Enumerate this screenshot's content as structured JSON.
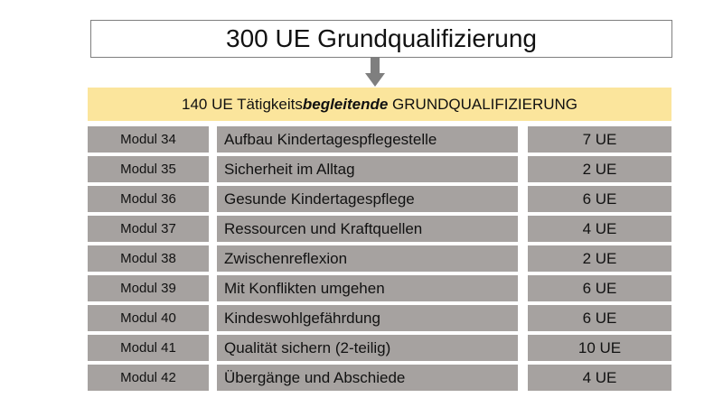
{
  "title": "300 UE Grundqualifizierung",
  "banner": {
    "prefix": "140 UE Tätigkeits",
    "emphasis": "begleitende",
    "suffix": " GRUNDQUALIFIZIERUNG"
  },
  "colors": {
    "banner": "#fbe59c",
    "cells": "#a6a2a0",
    "arrow": "#7f7f7f"
  },
  "modules": [
    {
      "modul": "Modul 34",
      "thema": "Aufbau Kindertagespflegestelle",
      "ue": "7 UE"
    },
    {
      "modul": "Modul 35",
      "thema": "Sicherheit im Alltag",
      "ue": "2 UE"
    },
    {
      "modul": "Modul 36",
      "thema": "Gesunde Kindertagespflege",
      "ue": "6 UE"
    },
    {
      "modul": "Modul 37",
      "thema": "Ressourcen und Kraftquellen",
      "ue": "4 UE"
    },
    {
      "modul": "Modul 38",
      "thema": "Zwischenreflexion",
      "ue": "2 UE"
    },
    {
      "modul": "Modul 39",
      "thema": "Mit Konflikten umgehen",
      "ue": "6 UE"
    },
    {
      "modul": "Modul 40",
      "thema": "Kindeswohlgefährdung",
      "ue": "6 UE"
    },
    {
      "modul": "Modul 41",
      "thema": "Qualität sichern (2-teilig)",
      "ue": "10 UE"
    },
    {
      "modul": "Modul 42",
      "thema": "Übergänge und Abschiede",
      "ue": "4 UE"
    }
  ]
}
